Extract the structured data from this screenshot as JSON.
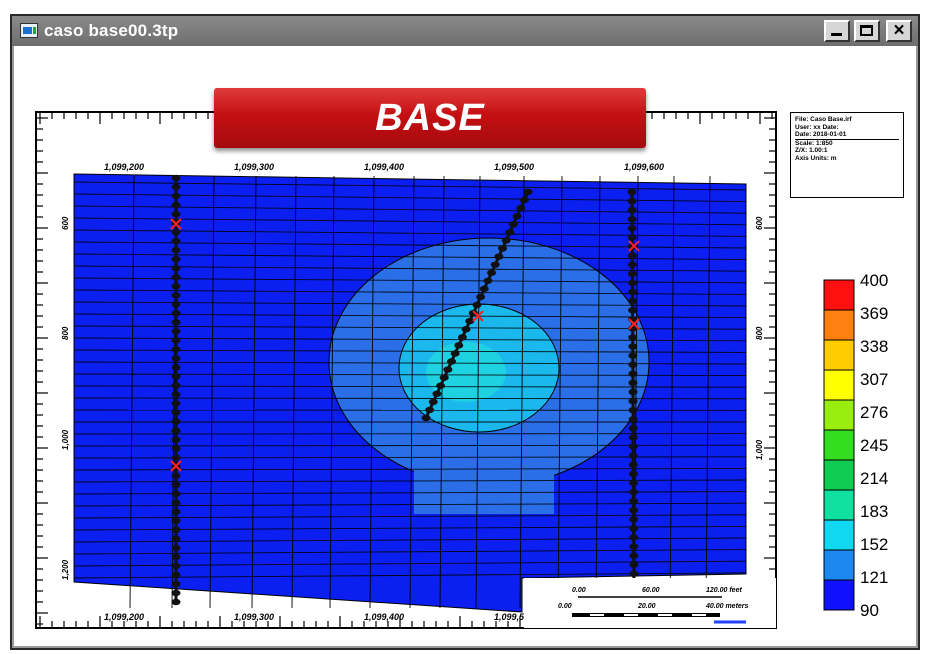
{
  "window": {
    "title": "caso base00.3tp",
    "buttons": {
      "minimize": "minimize",
      "maximize": "maximize",
      "close": "×"
    }
  },
  "banner": {
    "label": "BASE",
    "color": "#d01418"
  },
  "plot": {
    "x_ticks": [
      "1,099,200",
      "1,099,300",
      "1,099,400",
      "1,099,500",
      "1,099,600"
    ],
    "y_ticks_left": [
      "600",
      "800",
      "1,000",
      "1,200"
    ],
    "y_ticks_right": [
      "600",
      "800",
      "1,000"
    ],
    "info_box_lines": [
      "File: Caso Base.irf",
      "User: xx Date:",
      "Date: 2018-01-01",
      "Scale: 1:850",
      "Z/X: 1.00:1",
      "Axis Units: m"
    ],
    "scale_bar": {
      "labels_top": [
        "0.00",
        "60.00",
        "120.00 feet"
      ],
      "labels_bottom": [
        "0.00",
        "20.00",
        "40.00 meters"
      ]
    },
    "colors": {
      "background": "#0a1ff0",
      "ring": "#2a6fe8",
      "core": "#1ab8ec",
      "inner": "#1fd8e0",
      "wells": "#111111",
      "perforation": "#ff2020"
    }
  },
  "chart_data": {
    "type": "heatmap",
    "legend": {
      "values": [
        "400",
        "369",
        "338",
        "307",
        "276",
        "245",
        "214",
        "183",
        "152",
        "121",
        "90"
      ],
      "colors": [
        "#ff1010",
        "#ff7f10",
        "#ffcc00",
        "#ffff00",
        "#99ee10",
        "#33dd20",
        "#10cc50",
        "#10e0a0",
        "#10d8f0",
        "#1c88f0",
        "#1010ff"
      ]
    }
  }
}
